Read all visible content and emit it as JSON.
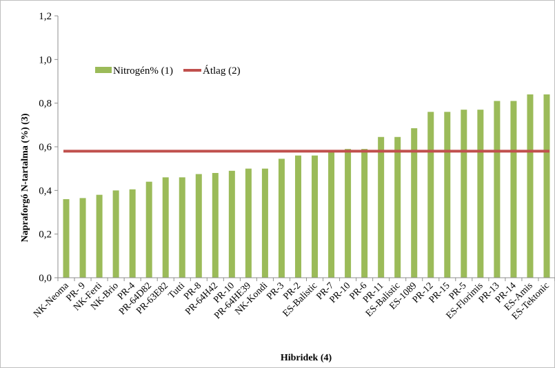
{
  "chart_data": {
    "type": "bar",
    "title": "",
    "xlabel": "Hibridek  (4)",
    "ylabel": "Napraforgó  N-tartalma  (%) (3)",
    "ylim": [
      0,
      1.2
    ],
    "yticks": [
      "0,0",
      "0,2",
      "0,4",
      "0,6",
      "0,8",
      "1,0",
      "1,2"
    ],
    "grid": false,
    "legend_position": "top-left",
    "categories": [
      "NK-Neoma",
      "PR- 9",
      "NK-Ferti",
      "NK-Brio",
      "PR-4",
      "PR-64D82",
      "PR-63E82",
      "Tutti",
      "PR-8",
      "PR-64H42",
      "PR-10",
      "PR-64HE39",
      "NK-Kondi",
      "PR-3",
      "PR-2",
      "ES-Balistic",
      "PR-7",
      "PR-10",
      "PR-6",
      "PR-11",
      "ES-Balistic",
      "ES-1089",
      "PR-12",
      "PR-15",
      "PR-5",
      "ES-Florimis",
      "PR-13",
      "PR-14",
      "ES-Amis",
      "ES-Tektonic"
    ],
    "series": [
      {
        "name": "Nitrogén% (1)",
        "type": "bar",
        "color": "#9bbb59",
        "values": [
          0.36,
          0.365,
          0.38,
          0.4,
          0.405,
          0.44,
          0.46,
          0.46,
          0.475,
          0.48,
          0.49,
          0.5,
          0.5,
          0.545,
          0.56,
          0.56,
          0.575,
          0.59,
          0.59,
          0.645,
          0.645,
          0.685,
          0.76,
          0.76,
          0.77,
          0.77,
          0.81,
          0.81,
          0.84,
          0.84
        ]
      },
      {
        "name": "Átlag (2)",
        "type": "line",
        "color": "#c0504d",
        "value": 0.58
      }
    ]
  }
}
